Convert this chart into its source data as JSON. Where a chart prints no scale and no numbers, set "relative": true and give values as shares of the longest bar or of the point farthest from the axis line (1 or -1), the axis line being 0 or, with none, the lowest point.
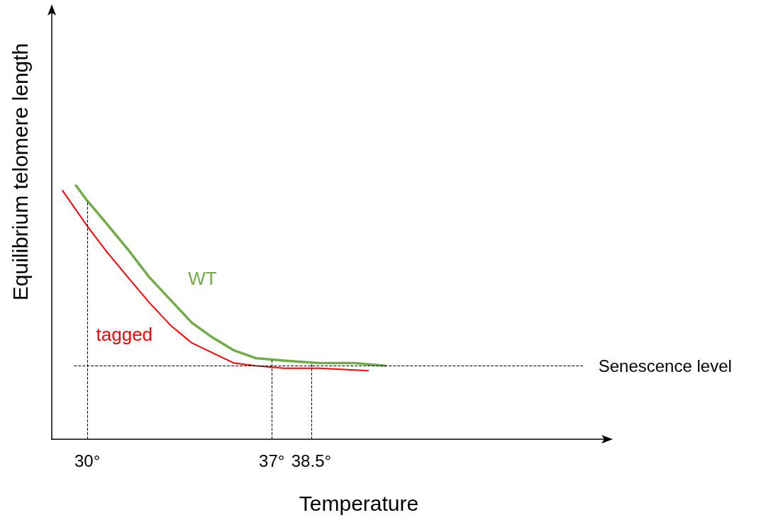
{
  "chart_data": {
    "type": "line",
    "relative": true,
    "xlabel": "Temperature",
    "ylabel": "Equilibrium telomere length",
    "xlim": [
      28.65,
      49.7
    ],
    "xticks": [
      {
        "value": 30,
        "label": "30°"
      },
      {
        "value": 37,
        "label": "37°"
      },
      {
        "value": 38.5,
        "label": "38.5°"
      }
    ],
    "tick_labels": "x",
    "grid": false,
    "legend": false,
    "marker": "none",
    "line_style": "solid",
    "series": [
      {
        "name": "WT",
        "color": "#70ad47",
        "x": [
          29.57,
          30,
          30.73,
          31.53,
          32.34,
          33.15,
          33.96,
          34.77,
          35.57,
          36.38,
          37.46,
          38.8,
          40.15,
          41.31
        ],
        "values": [
          1.0,
          0.94,
          0.85,
          0.75,
          0.64,
          0.55,
          0.46,
          0.4,
          0.35,
          0.32,
          0.31,
          0.3,
          0.3,
          0.29
        ]
      },
      {
        "name": "tagged",
        "color": "#ff0000",
        "x": [
          29.06,
          30,
          30.73,
          31.53,
          32.34,
          33.15,
          33.96,
          34.77,
          35.57,
          36.38,
          37.46,
          38.8,
          40.66
        ],
        "values": [
          0.98,
          0.84,
          0.74,
          0.64,
          0.54,
          0.45,
          0.38,
          0.34,
          0.3,
          0.29,
          0.28,
          0.28,
          0.27
        ]
      }
    ],
    "ref_lines": [
      {
        "axis": "y",
        "value": 0.29,
        "label": "Senescence level",
        "line_style": "dashed",
        "color": "#000000"
      },
      {
        "axis": "x",
        "value": 30,
        "line_style": "dashed",
        "color": "#000000"
      },
      {
        "axis": "x",
        "value": 37,
        "line_style": "dashed",
        "color": "#000000"
      },
      {
        "axis": "x",
        "value": 38.5,
        "line_style": "dashed",
        "color": "#000000"
      }
    ]
  }
}
